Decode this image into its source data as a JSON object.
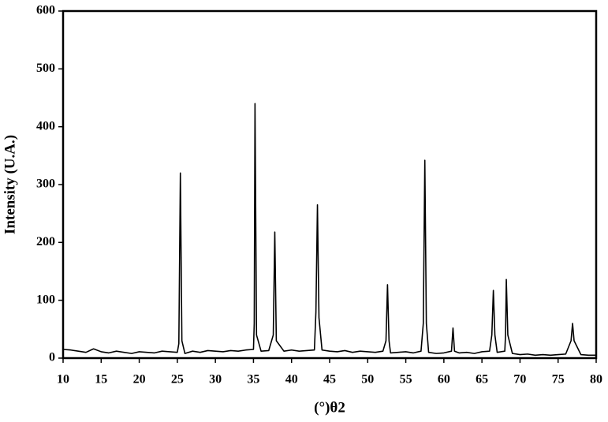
{
  "chart_data": {
    "type": "line",
    "xlabel": "(°)θ2",
    "ylabel": "Intensity (U.A.)",
    "color": "#000000",
    "x": [
      10,
      11,
      12,
      13,
      14,
      15,
      16,
      17,
      18,
      19,
      20,
      21,
      22,
      23,
      24,
      25,
      25.2,
      25.4,
      25.6,
      26,
      27,
      28,
      29,
      30,
      31,
      32,
      33,
      34,
      35,
      35.1,
      35.2,
      35.4,
      36,
      37,
      37.6,
      37.8,
      38,
      39,
      40,
      41,
      42,
      43,
      43.2,
      43.4,
      43.6,
      44,
      45,
      46,
      47,
      48,
      49,
      50,
      51,
      52,
      52.4,
      52.6,
      52.8,
      53,
      54,
      55,
      56,
      57,
      57.3,
      57.5,
      57.7,
      58,
      59,
      60,
      61,
      61.2,
      61.4,
      62,
      63,
      64,
      65,
      66,
      66.3,
      66.5,
      66.7,
      67,
      68,
      68.1,
      68.2,
      68.4,
      69,
      70,
      71,
      72,
      73,
      74,
      75,
      76,
      76.7,
      76.9,
      77.1,
      78,
      79,
      80
    ],
    "values": [
      15,
      14,
      12,
      10,
      16,
      11,
      9,
      12,
      10,
      8,
      11,
      10,
      9,
      12,
      11,
      10,
      25,
      320,
      30,
      8,
      12,
      10,
      13,
      12,
      11,
      13,
      12,
      14,
      15,
      60,
      440,
      40,
      12,
      13,
      40,
      218,
      30,
      12,
      14,
      12,
      13,
      14,
      80,
      265,
      70,
      14,
      12,
      11,
      13,
      10,
      12,
      11,
      10,
      12,
      30,
      127,
      30,
      9,
      10,
      11,
      9,
      12,
      60,
      342,
      60,
      10,
      8,
      9,
      12,
      52,
      12,
      9,
      10,
      8,
      11,
      12,
      40,
      117,
      40,
      10,
      12,
      40,
      136,
      40,
      8,
      6,
      7,
      5,
      6,
      5,
      6,
      7,
      30,
      60,
      30,
      6,
      5,
      5
    ],
    "xlim": [
      10,
      80
    ],
    "ylim": [
      0,
      600
    ],
    "xticks": [
      10,
      15,
      20,
      25,
      30,
      35,
      40,
      45,
      50,
      55,
      60,
      65,
      70,
      75,
      80
    ],
    "yticks": [
      0,
      100,
      200,
      300,
      400,
      500,
      600
    ]
  }
}
